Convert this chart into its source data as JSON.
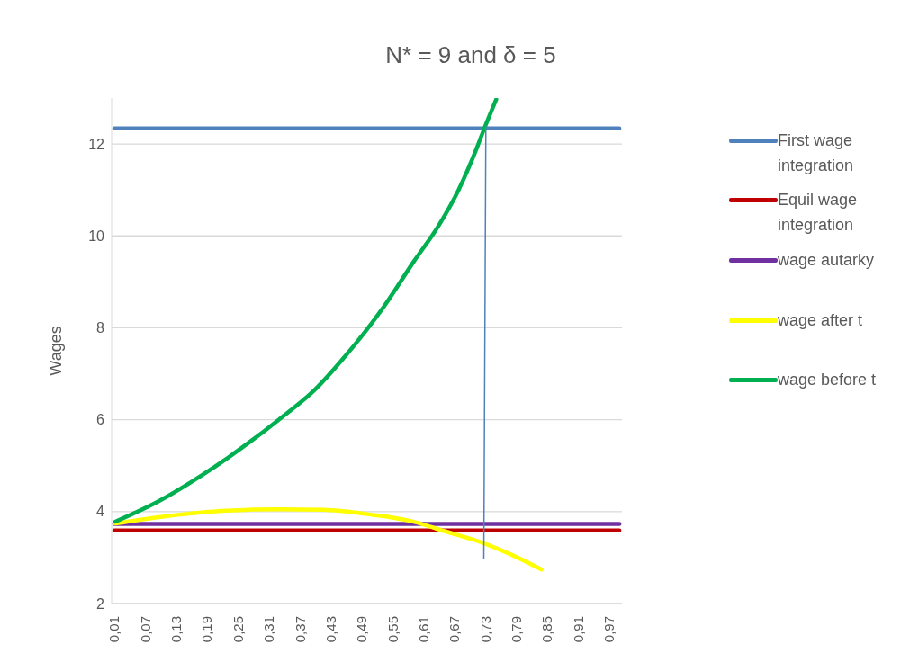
{
  "chart_data": {
    "type": "line",
    "title": "N* = 9 and δ = 5",
    "ylabel": "Wages",
    "xlim": [
      0.005,
      0.995
    ],
    "xticks": [
      {
        "value": 0.01,
        "label": "0,01"
      },
      {
        "value": 0.07,
        "label": "0,07"
      },
      {
        "value": 0.13,
        "label": "0,13"
      },
      {
        "value": 0.19,
        "label": "0,19"
      },
      {
        "value": 0.25,
        "label": "0,25"
      },
      {
        "value": 0.31,
        "label": "0,31"
      },
      {
        "value": 0.37,
        "label": "0,37"
      },
      {
        "value": 0.43,
        "label": "0,43"
      },
      {
        "value": 0.49,
        "label": "0,49"
      },
      {
        "value": 0.55,
        "label": "0,55"
      },
      {
        "value": 0.61,
        "label": "0,61"
      },
      {
        "value": 0.67,
        "label": "0,67"
      },
      {
        "value": 0.73,
        "label": "0,73"
      },
      {
        "value": 0.79,
        "label": "0,79"
      },
      {
        "value": 0.85,
        "label": "0,85"
      },
      {
        "value": 0.91,
        "label": "0,91"
      },
      {
        "value": 0.97,
        "label": "0,97"
      }
    ],
    "ylim": [
      2,
      13
    ],
    "yticks": [
      2,
      4,
      6,
      8,
      10,
      12
    ],
    "grid": "y",
    "legend": "right",
    "marker": "none",
    "series": [
      {
        "name": "First wage integration",
        "color": "#4f81bd",
        "x": [
          0.01,
          0.99
        ],
        "values": [
          12.34,
          12.34
        ]
      },
      {
        "name": "Equil wage integration",
        "color": "#c00000",
        "x": [
          0.01,
          0.99
        ],
        "values": [
          3.59,
          3.59
        ]
      },
      {
        "name": "wage autarky",
        "color": "#7030a0",
        "x": [
          0.01,
          0.99
        ],
        "values": [
          3.73,
          3.73
        ]
      },
      {
        "name": "wage after t",
        "color": "#ffff00",
        "x": [
          0.012,
          0.097,
          0.213,
          0.329,
          0.416,
          0.504,
          0.591,
          0.649,
          0.725,
          0.783,
          0.839
        ],
        "values": [
          3.74,
          3.88,
          4.01,
          4.05,
          4.04,
          3.94,
          3.78,
          3.58,
          3.32,
          3.05,
          2.74
        ]
      },
      {
        "name": "wage before t",
        "color": "#00b050",
        "x": [
          0.012,
          0.097,
          0.184,
          0.271,
          0.329,
          0.399,
          0.451,
          0.533,
          0.591,
          0.638,
          0.678,
          0.713,
          0.728,
          0.751
        ],
        "values": [
          3.78,
          4.23,
          4.82,
          5.5,
          6.0,
          6.65,
          7.29,
          8.46,
          9.44,
          10.2,
          11.0,
          11.9,
          12.34,
          12.97
        ]
      },
      {
        "color": "#4f81bd",
        "x": [
          0.731,
          0.727
        ],
        "values": [
          12.4,
          2.98
        ]
      }
    ]
  }
}
